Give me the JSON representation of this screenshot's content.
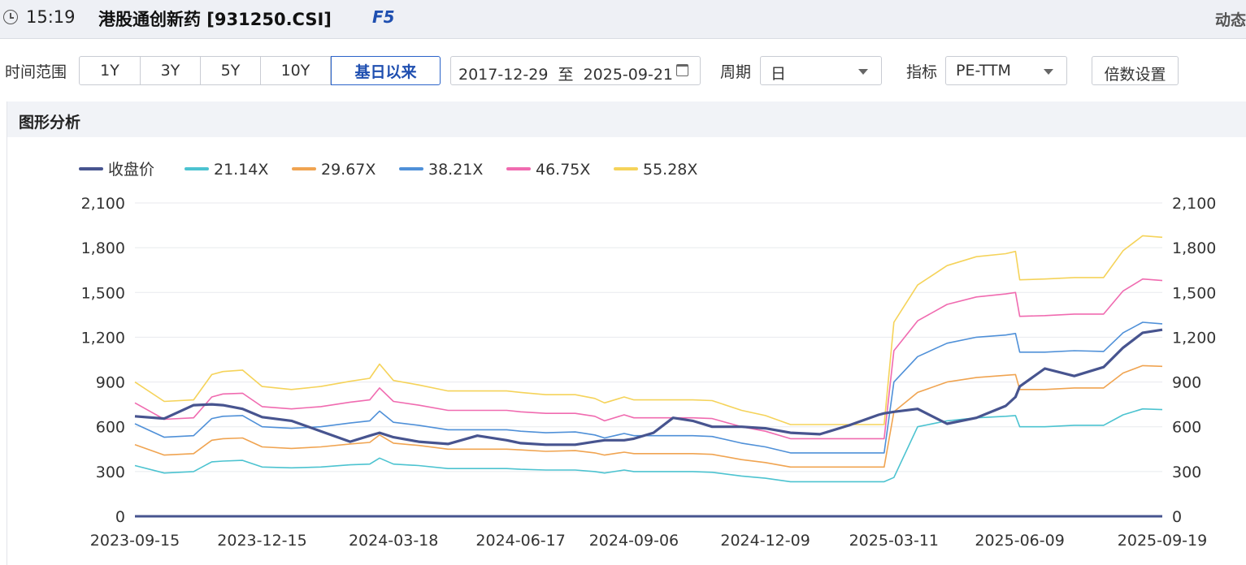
{
  "header": {
    "time": "15:19",
    "index_name": "港股通创新药 [931250.CSI]",
    "hotkey": "F5",
    "mode": "动态"
  },
  "toolbar": {
    "range_label": "时间范围",
    "range_options": [
      "1Y",
      "3Y",
      "5Y",
      "10Y",
      "基日以来"
    ],
    "range_selected": "基日以来",
    "date_range": "2017-12-29  至  2025-09-21",
    "period_label": "周期",
    "period_value": "日",
    "indicator_label": "指标",
    "indicator_value": "PE-TTM",
    "multiple_button": "倍数设置"
  },
  "panel": {
    "title": "图形分析"
  },
  "colors": {
    "close": "#47548f",
    "s1": "#4cc3d0",
    "s2": "#f0a451",
    "s3": "#4f90d8",
    "s4": "#f06bb0",
    "s5": "#f5d35a"
  },
  "chart_data": {
    "type": "line",
    "legend_position": "top-left",
    "grid": true,
    "ylim": [
      0,
      2100
    ],
    "y_ticks": [
      "2,100",
      "1,800",
      "1,500",
      "1,200",
      "900",
      "600",
      "300",
      "0"
    ],
    "y_tick_values": [
      2100,
      1800,
      1500,
      1200,
      900,
      600,
      300,
      0
    ],
    "x_ticks": [
      "2023-09-15",
      "2023-12-15",
      "2024-03-18",
      "2024-06-17",
      "2024-09-06",
      "2024-12-09",
      "2025-03-11",
      "2025-06-09",
      "2025-09-19"
    ],
    "x": [
      "2023-09-15",
      "2023-10-06",
      "2023-10-27",
      "2023-11-09",
      "2023-11-17",
      "2023-12-01",
      "2023-12-15",
      "2024-01-05",
      "2024-01-26",
      "2024-02-16",
      "2024-03-01",
      "2024-03-08",
      "2024-03-18",
      "2024-04-05",
      "2024-04-26",
      "2024-05-17",
      "2024-06-07",
      "2024-06-17",
      "2024-07-05",
      "2024-07-26",
      "2024-08-09",
      "2024-08-16",
      "2024-08-30",
      "2024-09-06",
      "2024-09-20",
      "2024-10-04",
      "2024-10-18",
      "2024-11-01",
      "2024-11-22",
      "2024-12-09",
      "2024-12-27",
      "2025-01-17",
      "2025-02-07",
      "2025-02-28",
      "2025-03-04",
      "2025-03-11",
      "2025-03-28",
      "2025-04-18",
      "2025-05-09",
      "2025-05-30",
      "2025-06-06",
      "2025-06-09",
      "2025-06-27",
      "2025-07-18",
      "2025-08-08",
      "2025-08-22",
      "2025-09-05",
      "2025-09-19"
    ],
    "series": [
      {
        "name": "收盘价",
        "color_key": "close",
        "width": 3.2,
        "values": [
          670,
          655,
          745,
          750,
          745,
          720,
          665,
          640,
          570,
          500,
          540,
          560,
          530,
          500,
          485,
          540,
          510,
          490,
          480,
          480,
          500,
          510,
          510,
          520,
          560,
          660,
          640,
          600,
          600,
          590,
          560,
          550,
          610,
          680,
          690,
          700,
          720,
          620,
          660,
          740,
          800,
          870,
          990,
          940,
          1000,
          1130,
          1230,
          1250
        ]
      },
      {
        "name": "21.14X",
        "color_key": "s1",
        "width": 1.6,
        "values": [
          340,
          290,
          300,
          365,
          370,
          375,
          330,
          325,
          330,
          345,
          350,
          390,
          350,
          340,
          320,
          320,
          320,
          315,
          310,
          310,
          300,
          290,
          310,
          300,
          300,
          300,
          300,
          295,
          270,
          255,
          232,
          232,
          232,
          232,
          232,
          260,
          600,
          640,
          660,
          670,
          675,
          600,
          600,
          610,
          610,
          680,
          720,
          715
        ]
      },
      {
        "name": "29.67X",
        "color_key": "s2",
        "width": 1.6,
        "values": [
          480,
          410,
          420,
          510,
          520,
          525,
          465,
          455,
          465,
          485,
          495,
          545,
          490,
          475,
          450,
          450,
          450,
          445,
          435,
          440,
          425,
          410,
          430,
          420,
          420,
          420,
          420,
          415,
          380,
          360,
          330,
          330,
          330,
          330,
          330,
          700,
          830,
          900,
          930,
          945,
          950,
          850,
          850,
          860,
          860,
          960,
          1010,
          1005
        ]
      },
      {
        "name": "38.21X",
        "color_key": "s3",
        "width": 1.6,
        "values": [
          620,
          530,
          540,
          655,
          670,
          675,
          600,
          590,
          600,
          625,
          640,
          705,
          630,
          610,
          580,
          580,
          580,
          570,
          560,
          565,
          545,
          525,
          555,
          540,
          540,
          540,
          540,
          535,
          490,
          465,
          425,
          425,
          425,
          425,
          425,
          900,
          1070,
          1160,
          1200,
          1215,
          1225,
          1100,
          1100,
          1110,
          1105,
          1230,
          1300,
          1290
        ]
      },
      {
        "name": "46.75X",
        "color_key": "s4",
        "width": 1.6,
        "values": [
          760,
          650,
          660,
          800,
          820,
          825,
          735,
          720,
          735,
          765,
          780,
          860,
          770,
          745,
          710,
          710,
          710,
          700,
          690,
          690,
          670,
          640,
          680,
          660,
          660,
          660,
          660,
          655,
          600,
          570,
          520,
          520,
          520,
          520,
          520,
          1110,
          1310,
          1420,
          1470,
          1490,
          1500,
          1340,
          1345,
          1355,
          1355,
          1510,
          1590,
          1580
        ]
      },
      {
        "name": "55.28X",
        "color_key": "s5",
        "width": 1.6,
        "values": [
          900,
          770,
          780,
          950,
          970,
          980,
          870,
          850,
          870,
          905,
          925,
          1020,
          910,
          880,
          840,
          840,
          840,
          830,
          815,
          815,
          790,
          760,
          800,
          780,
          780,
          780,
          780,
          775,
          710,
          675,
          615,
          615,
          615,
          615,
          615,
          1300,
          1550,
          1680,
          1740,
          1760,
          1775,
          1585,
          1590,
          1600,
          1600,
          1780,
          1880,
          1870
        ]
      }
    ]
  }
}
